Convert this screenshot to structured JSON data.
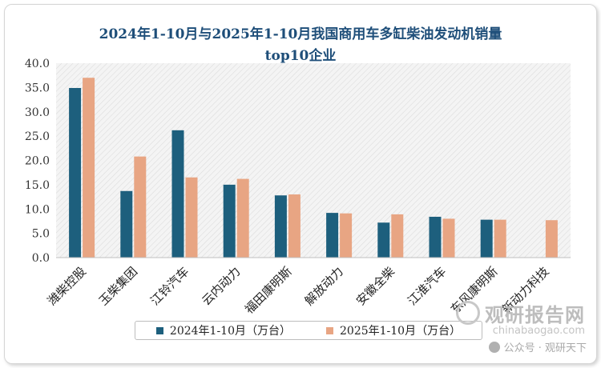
{
  "chart_data": {
    "type": "bar",
    "title_line1": "2024年1-10月与2025年1-10月我国商用车多缸柴油发动机销量",
    "title_line2": "top10企业",
    "categories": [
      "潍柴控股",
      "玉柴集团",
      "江铃汽车",
      "云内动力",
      "福田康明斯",
      "解放动力",
      "安徽全柴",
      "江淮汽车",
      "东风康明斯",
      "新动力科技"
    ],
    "series": [
      {
        "name": "2024年1-10月（万台）",
        "color": "#1d5f7d",
        "values": [
          34.9,
          13.7,
          26.2,
          15.0,
          12.8,
          9.2,
          7.2,
          8.4,
          7.8,
          null
        ]
      },
      {
        "name": "2025年1-10月（万台）",
        "color": "#e8a583",
        "values": [
          37.0,
          20.8,
          16.5,
          16.2,
          13.0,
          9.1,
          8.9,
          8.0,
          7.8,
          7.7
        ]
      }
    ],
    "y_ticks": [
      "0.0",
      "5.0",
      "10.0",
      "15.0",
      "20.0",
      "25.0",
      "30.0",
      "35.0",
      "40.0"
    ],
    "ylim": [
      0,
      40
    ],
    "xlabel": "",
    "ylabel": "",
    "legend_position": "bottom"
  },
  "watermark": {
    "main": "观研报告网",
    "sub": "chinabaogao.com",
    "public": "公众号 · 观研天下"
  }
}
